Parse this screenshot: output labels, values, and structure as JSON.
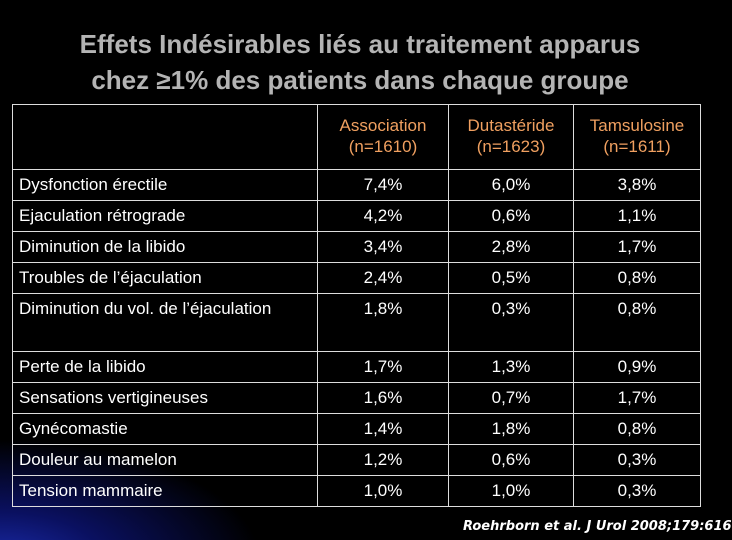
{
  "title": {
    "line1": "Effets Indésirables liés au traitement apparus",
    "line2": "chez ≥1% des patients dans chaque groupe"
  },
  "table": {
    "headers": [
      {
        "name": "Association",
        "n": "(n=1610)"
      },
      {
        "name": "Dutastéride",
        "n": "(n=1623)"
      },
      {
        "name": "Tamsulosine",
        "n": "(n=1611)"
      }
    ],
    "rows": [
      {
        "label": "Dysfonction érectile",
        "values": [
          "7,4%",
          "6,0%",
          "3,8%"
        ]
      },
      {
        "label": "Ejaculation rétrograde",
        "values": [
          "4,2%",
          "0,6%",
          "1,1%"
        ]
      },
      {
        "label": "Diminution de la libido",
        "values": [
          "3,4%",
          "2,8%",
          "1,7%"
        ]
      },
      {
        "label": "Troubles de l’éjaculation",
        "values": [
          "2,4%",
          "0,5%",
          "0,8%"
        ]
      },
      {
        "label": "Diminution du vol. de l’éjaculation",
        "values": [
          "1,8%",
          "0,3%",
          "0,8%"
        ]
      },
      {
        "label": "Perte de la libido",
        "values": [
          "1,7%",
          "1,3%",
          "0,9%"
        ]
      },
      {
        "label": "Sensations vertigineuses",
        "values": [
          "1,6%",
          "0,7%",
          "1,7%"
        ]
      },
      {
        "label": "Gynécomastie",
        "values": [
          "1,4%",
          "1,8%",
          "0,8%"
        ]
      },
      {
        "label": "Douleur au mamelon",
        "values": [
          "1,2%",
          "0,6%",
          "0,3%"
        ]
      },
      {
        "label": "Tension mammaire",
        "values": [
          "1,0%",
          "1,0%",
          "0,3%"
        ]
      }
    ]
  },
  "citation": "Roehrborn et al. J Urol 2008;179:616"
}
